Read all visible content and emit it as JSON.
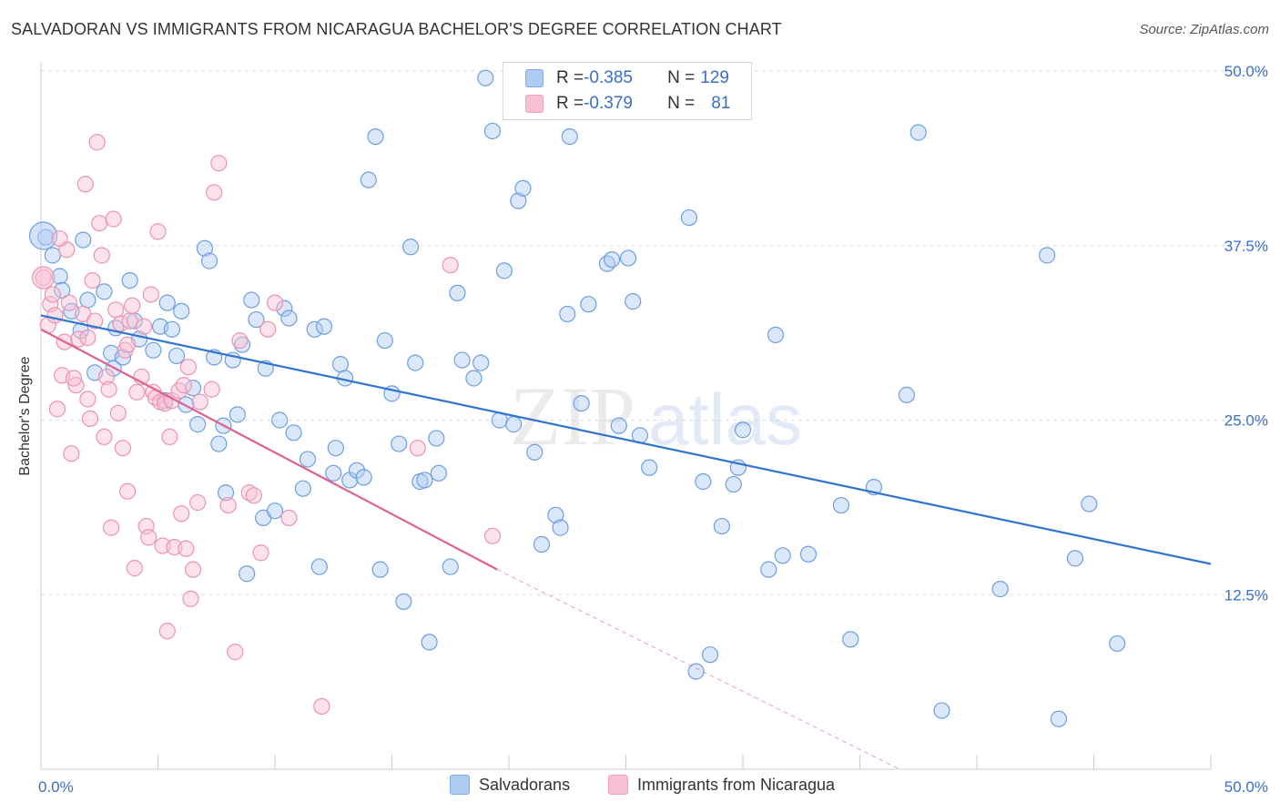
{
  "header": {
    "title": "SALVADORAN VS IMMIGRANTS FROM NICARAGUA BACHELOR'S DEGREE CORRELATION CHART",
    "source": "Source: ZipAtlas.com"
  },
  "colors": {
    "blue": "#7fa9e6",
    "blue_line": "#2f74d0",
    "pink": "#f0a0bb",
    "pink_line": "#e06090",
    "axis_text": "#3a6fc4",
    "grid": "#dddddd"
  },
  "legend_top": {
    "rows": [
      {
        "r_label": "R = ",
        "r_value": "-0.385",
        "n_label": "N = ",
        "n_value": "129",
        "color": "#aecbf2"
      },
      {
        "r_label": "R = ",
        "r_value": "-0.379",
        "n_label": "N = ",
        "n_value": "81",
        "color": "#f8c1d3"
      }
    ]
  },
  "watermark": {
    "left": "ZIP",
    "right": "atlas"
  },
  "chart_data": {
    "type": "scatter",
    "title": "SALVADORAN VS IMMIGRANTS FROM NICARAGUA BACHELOR'S DEGREE CORRELATION CHART",
    "xlabel": "",
    "ylabel": "Bachelor's Degree",
    "xlim": [
      0,
      50
    ],
    "ylim": [
      0,
      50
    ],
    "x_ticks": [
      "0.0%",
      "50.0%"
    ],
    "y_ticks": [
      {
        "value": 12.5,
        "label": "12.5%"
      },
      {
        "value": 25.0,
        "label": "25.0%"
      },
      {
        "value": 37.5,
        "label": "37.5%"
      },
      {
        "value": 50.0,
        "label": "50.0%"
      }
    ],
    "grid": true,
    "legend_position": "bottom",
    "series": [
      {
        "name": "Salvadorans",
        "color": "#7fa9e6",
        "trend": {
          "x": [
            0,
            50
          ],
          "y": [
            32.5,
            14.7
          ]
        },
        "points": [
          [
            0.2,
            38.1
          ],
          [
            0.5,
            36.8
          ],
          [
            0.8,
            35.3
          ],
          [
            0.9,
            34.3
          ],
          [
            1.8,
            37.9
          ],
          [
            2.7,
            34.2
          ],
          [
            3.2,
            31.6
          ],
          [
            3.8,
            35.0
          ],
          [
            4.2,
            30.8
          ],
          [
            1.3,
            32.8
          ],
          [
            1.7,
            31.4
          ],
          [
            2.0,
            33.6
          ],
          [
            2.3,
            28.4
          ],
          [
            3.0,
            29.8
          ],
          [
            3.1,
            28.7
          ],
          [
            3.5,
            29.5
          ],
          [
            4.0,
            32.1
          ],
          [
            4.8,
            30.0
          ],
          [
            5.1,
            31.7
          ],
          [
            5.3,
            26.4
          ],
          [
            5.4,
            33.4
          ],
          [
            5.6,
            31.5
          ],
          [
            5.8,
            29.6
          ],
          [
            6.0,
            32.8
          ],
          [
            6.2,
            26.1
          ],
          [
            6.5,
            27.3
          ],
          [
            6.7,
            24.7
          ],
          [
            7.0,
            37.3
          ],
          [
            7.2,
            36.4
          ],
          [
            7.4,
            29.5
          ],
          [
            7.6,
            23.3
          ],
          [
            7.8,
            24.6
          ],
          [
            7.9,
            19.8
          ],
          [
            8.2,
            29.3
          ],
          [
            8.4,
            25.4
          ],
          [
            8.6,
            30.4
          ],
          [
            8.8,
            14.0
          ],
          [
            9.0,
            33.6
          ],
          [
            9.2,
            32.2
          ],
          [
            9.5,
            18.0
          ],
          [
            9.6,
            28.7
          ],
          [
            10.0,
            18.5
          ],
          [
            10.2,
            25.0
          ],
          [
            10.4,
            33.0
          ],
          [
            10.6,
            32.3
          ],
          [
            10.8,
            24.1
          ],
          [
            11.2,
            20.1
          ],
          [
            11.4,
            22.2
          ],
          [
            11.7,
            31.5
          ],
          [
            11.9,
            14.5
          ],
          [
            12.1,
            31.7
          ],
          [
            12.5,
            21.2
          ],
          [
            12.6,
            23.0
          ],
          [
            12.8,
            29.0
          ],
          [
            13.0,
            28.0
          ],
          [
            13.2,
            20.7
          ],
          [
            13.5,
            21.4
          ],
          [
            13.8,
            20.9
          ],
          [
            14.0,
            42.2
          ],
          [
            14.3,
            45.3
          ],
          [
            14.5,
            14.3
          ],
          [
            14.7,
            30.7
          ],
          [
            15.0,
            26.9
          ],
          [
            15.3,
            23.3
          ],
          [
            15.5,
            12.0
          ],
          [
            15.8,
            37.4
          ],
          [
            16.0,
            29.1
          ],
          [
            16.2,
            20.6
          ],
          [
            16.4,
            20.7
          ],
          [
            16.6,
            9.1
          ],
          [
            16.9,
            23.7
          ],
          [
            17.0,
            21.2
          ],
          [
            17.5,
            14.5
          ],
          [
            17.8,
            34.1
          ],
          [
            18.0,
            29.3
          ],
          [
            18.5,
            28.0
          ],
          [
            18.8,
            29.1
          ],
          [
            19.0,
            49.5
          ],
          [
            19.3,
            45.7
          ],
          [
            19.6,
            25.0
          ],
          [
            19.8,
            35.7
          ],
          [
            20.2,
            24.7
          ],
          [
            20.4,
            40.7
          ],
          [
            20.6,
            41.6
          ],
          [
            21.1,
            22.7
          ],
          [
            21.4,
            16.1
          ],
          [
            22.0,
            18.2
          ],
          [
            22.2,
            17.3
          ],
          [
            22.5,
            32.6
          ],
          [
            22.6,
            45.3
          ],
          [
            23.1,
            26.2
          ],
          [
            23.4,
            33.3
          ],
          [
            24.2,
            36.2
          ],
          [
            24.4,
            36.5
          ],
          [
            24.7,
            24.6
          ],
          [
            25.1,
            36.6
          ],
          [
            25.3,
            33.5
          ],
          [
            25.6,
            23.9
          ],
          [
            26.0,
            21.6
          ],
          [
            27.7,
            39.5
          ],
          [
            28.0,
            7.0
          ],
          [
            28.3,
            20.6
          ],
          [
            28.6,
            8.2
          ],
          [
            29.1,
            17.4
          ],
          [
            29.6,
            20.4
          ],
          [
            29.8,
            21.6
          ],
          [
            30.0,
            24.3
          ],
          [
            31.1,
            14.3
          ],
          [
            31.4,
            31.1
          ],
          [
            31.7,
            15.3
          ],
          [
            32.8,
            15.4
          ],
          [
            34.2,
            18.9
          ],
          [
            34.6,
            9.3
          ],
          [
            35.6,
            20.2
          ],
          [
            37.0,
            26.8
          ],
          [
            37.5,
            45.6
          ],
          [
            38.5,
            4.2
          ],
          [
            41.0,
            12.9
          ],
          [
            43.0,
            36.8
          ],
          [
            43.5,
            3.6
          ],
          [
            44.2,
            15.1
          ],
          [
            44.8,
            19.0
          ],
          [
            46.0,
            9.0
          ]
        ]
      },
      {
        "name": "Immigrants from Nicaragua",
        "color": "#f0a0bb",
        "trend": {
          "x": [
            0,
            19.5
          ],
          "y": [
            31.5,
            14.3
          ],
          "dashed_to": {
            "x": 36.7,
            "y": 0
          }
        },
        "points": [
          [
            0.1,
            35.2
          ],
          [
            0.3,
            31.8
          ],
          [
            0.4,
            33.3
          ],
          [
            0.6,
            32.5
          ],
          [
            0.7,
            25.8
          ],
          [
            0.9,
            28.2
          ],
          [
            1.1,
            37.2
          ],
          [
            1.2,
            33.4
          ],
          [
            1.3,
            22.6
          ],
          [
            1.5,
            27.5
          ],
          [
            1.6,
            30.8
          ],
          [
            1.8,
            32.6
          ],
          [
            1.9,
            41.9
          ],
          [
            2.0,
            26.5
          ],
          [
            2.1,
            25.1
          ],
          [
            2.2,
            35.0
          ],
          [
            2.3,
            32.1
          ],
          [
            2.4,
            44.9
          ],
          [
            2.5,
            39.1
          ],
          [
            2.6,
            36.8
          ],
          [
            2.7,
            23.8
          ],
          [
            2.8,
            28.1
          ],
          [
            2.9,
            27.2
          ],
          [
            3.0,
            17.3
          ],
          [
            3.1,
            39.4
          ],
          [
            3.2,
            32.9
          ],
          [
            3.3,
            25.5
          ],
          [
            3.4,
            31.9
          ],
          [
            3.5,
            23.0
          ],
          [
            3.6,
            30.0
          ],
          [
            3.7,
            19.9
          ],
          [
            3.8,
            32.1
          ],
          [
            3.9,
            33.2
          ],
          [
            4.0,
            14.4
          ],
          [
            4.1,
            27.0
          ],
          [
            4.3,
            28.1
          ],
          [
            4.4,
            31.7
          ],
          [
            4.5,
            17.4
          ],
          [
            4.6,
            16.6
          ],
          [
            4.7,
            34.0
          ],
          [
            4.8,
            27.0
          ],
          [
            4.9,
            26.6
          ],
          [
            5.0,
            38.5
          ],
          [
            5.1,
            26.3
          ],
          [
            5.2,
            16.0
          ],
          [
            5.3,
            26.2
          ],
          [
            5.4,
            9.9
          ],
          [
            5.5,
            23.8
          ],
          [
            5.6,
            26.4
          ],
          [
            5.7,
            15.9
          ],
          [
            5.9,
            27.1
          ],
          [
            6.0,
            18.3
          ],
          [
            6.1,
            27.5
          ],
          [
            6.2,
            15.8
          ],
          [
            6.3,
            28.8
          ],
          [
            6.4,
            12.2
          ],
          [
            6.5,
            14.3
          ],
          [
            6.7,
            19.1
          ],
          [
            6.8,
            26.3
          ],
          [
            7.3,
            27.2
          ],
          [
            7.4,
            41.3
          ],
          [
            7.6,
            43.4
          ],
          [
            8.0,
            18.9
          ],
          [
            8.3,
            8.4
          ],
          [
            8.5,
            30.7
          ],
          [
            8.9,
            19.8
          ],
          [
            9.1,
            19.6
          ],
          [
            9.4,
            15.5
          ],
          [
            9.7,
            31.5
          ],
          [
            10.0,
            33.4
          ],
          [
            10.6,
            18.0
          ],
          [
            12.0,
            4.5
          ],
          [
            16.1,
            23.0
          ],
          [
            17.5,
            36.1
          ],
          [
            19.3,
            16.7
          ],
          [
            0.5,
            34.0
          ],
          [
            1.0,
            30.6
          ],
          [
            1.4,
            28.0
          ],
          [
            2.0,
            30.9
          ],
          [
            3.7,
            30.4
          ],
          [
            0.8,
            38.0
          ]
        ]
      }
    ]
  },
  "bottom_legend": {
    "items": [
      {
        "label": "Salvadorans",
        "color": "#aecbf2"
      },
      {
        "label": "Immigrants from Nicaragua",
        "color": "#f8c1d3"
      }
    ]
  }
}
